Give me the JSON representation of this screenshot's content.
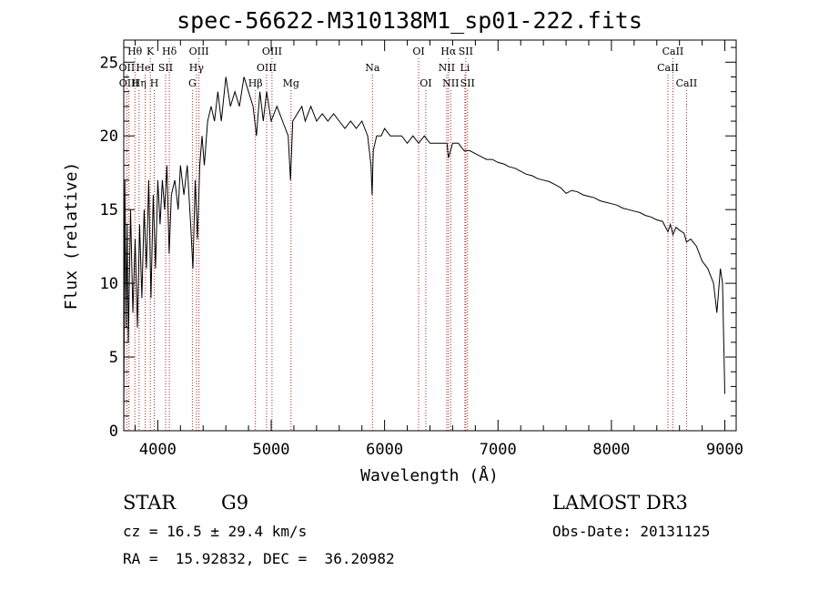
{
  "chart_data": {
    "type": "line",
    "title": "spec-56622-M310138M1_sp01-222.fits",
    "xlabel": "Wavelength (Å)",
    "ylabel": "Flux (relative)",
    "xlim": [
      3700,
      9100
    ],
    "ylim": [
      0,
      26.5
    ],
    "xticks": [
      4000,
      5000,
      6000,
      7000,
      8000,
      9000
    ],
    "yticks": [
      0,
      5,
      10,
      15,
      20,
      25
    ],
    "line_color": "#000000",
    "marker_color": "#b22222",
    "spectrum_points": [
      [
        3700,
        0.5
      ],
      [
        3710,
        17
      ],
      [
        3720,
        7
      ],
      [
        3730,
        14
      ],
      [
        3740,
        6
      ],
      [
        3760,
        15
      ],
      [
        3780,
        8
      ],
      [
        3800,
        13
      ],
      [
        3820,
        7
      ],
      [
        3840,
        14
      ],
      [
        3860,
        9
      ],
      [
        3880,
        15
      ],
      [
        3900,
        11
      ],
      [
        3920,
        17
      ],
      [
        3940,
        9
      ],
      [
        3960,
        16
      ],
      [
        3980,
        11
      ],
      [
        4000,
        17
      ],
      [
        4020,
        14
      ],
      [
        4040,
        17
      ],
      [
        4060,
        15
      ],
      [
        4080,
        18
      ],
      [
        4100,
        12
      ],
      [
        4120,
        16
      ],
      [
        4150,
        17
      ],
      [
        4180,
        15
      ],
      [
        4200,
        18
      ],
      [
        4230,
        16
      ],
      [
        4260,
        18
      ],
      [
        4290,
        14
      ],
      [
        4310,
        11
      ],
      [
        4330,
        17
      ],
      [
        4350,
        13
      ],
      [
        4370,
        18
      ],
      [
        4390,
        20
      ],
      [
        4410,
        18
      ],
      [
        4440,
        21
      ],
      [
        4470,
        22
      ],
      [
        4500,
        21
      ],
      [
        4530,
        23
      ],
      [
        4560,
        21
      ],
      [
        4600,
        24
      ],
      [
        4640,
        22
      ],
      [
        4680,
        23
      ],
      [
        4720,
        22
      ],
      [
        4760,
        24
      ],
      [
        4800,
        23
      ],
      [
        4840,
        22
      ],
      [
        4870,
        20
      ],
      [
        4900,
        23
      ],
      [
        4930,
        21
      ],
      [
        4960,
        23
      ],
      [
        5000,
        21
      ],
      [
        5050,
        22
      ],
      [
        5100,
        21
      ],
      [
        5150,
        20
      ],
      [
        5170,
        17
      ],
      [
        5190,
        21
      ],
      [
        5230,
        21.5
      ],
      [
        5270,
        22
      ],
      [
        5300,
        21
      ],
      [
        5350,
        22
      ],
      [
        5400,
        21
      ],
      [
        5450,
        21.5
      ],
      [
        5500,
        21
      ],
      [
        5550,
        21.5
      ],
      [
        5600,
        21
      ],
      [
        5650,
        20.5
      ],
      [
        5700,
        21
      ],
      [
        5750,
        20.5
      ],
      [
        5800,
        21
      ],
      [
        5850,
        20
      ],
      [
        5880,
        18
      ],
      [
        5890,
        16
      ],
      [
        5900,
        19
      ],
      [
        5930,
        20
      ],
      [
        5970,
        20
      ],
      [
        6000,
        20.5
      ],
      [
        6050,
        20
      ],
      [
        6100,
        20
      ],
      [
        6150,
        20
      ],
      [
        6200,
        19.5
      ],
      [
        6250,
        20
      ],
      [
        6300,
        19.5
      ],
      [
        6350,
        20
      ],
      [
        6400,
        19.5
      ],
      [
        6450,
        19.5
      ],
      [
        6500,
        19.5
      ],
      [
        6550,
        19.5
      ],
      [
        6563,
        18.5
      ],
      [
        6600,
        19.5
      ],
      [
        6650,
        19.5
      ],
      [
        6700,
        19
      ],
      [
        6750,
        19
      ],
      [
        6800,
        18.8
      ],
      [
        6850,
        18.6
      ],
      [
        6900,
        18.4
      ],
      [
        6950,
        18.4
      ],
      [
        7000,
        18.2
      ],
      [
        7050,
        18.1
      ],
      [
        7100,
        17.9
      ],
      [
        7150,
        17.8
      ],
      [
        7200,
        17.6
      ],
      [
        7250,
        17.4
      ],
      [
        7300,
        17.3
      ],
      [
        7350,
        17.1
      ],
      [
        7400,
        17
      ],
      [
        7450,
        16.9
      ],
      [
        7500,
        16.7
      ],
      [
        7550,
        16.5
      ],
      [
        7600,
        16.1
      ],
      [
        7650,
        16.3
      ],
      [
        7700,
        16.2
      ],
      [
        7750,
        16
      ],
      [
        7800,
        15.9
      ],
      [
        7850,
        15.8
      ],
      [
        7900,
        15.6
      ],
      [
        7950,
        15.5
      ],
      [
        8000,
        15.4
      ],
      [
        8050,
        15.3
      ],
      [
        8100,
        15.1
      ],
      [
        8150,
        15
      ],
      [
        8200,
        14.9
      ],
      [
        8250,
        14.8
      ],
      [
        8300,
        14.6
      ],
      [
        8350,
        14.5
      ],
      [
        8400,
        14.3
      ],
      [
        8450,
        14.2
      ],
      [
        8498,
        13.5
      ],
      [
        8520,
        14
      ],
      [
        8542,
        13.3
      ],
      [
        8570,
        13.8
      ],
      [
        8600,
        13.6
      ],
      [
        8640,
        13.4
      ],
      [
        8662,
        12.8
      ],
      [
        8700,
        13
      ],
      [
        8750,
        12.5
      ],
      [
        8800,
        11.5
      ],
      [
        8850,
        11
      ],
      [
        8900,
        10
      ],
      [
        8930,
        8
      ],
      [
        8960,
        11
      ],
      [
        8980,
        10
      ],
      [
        9000,
        2.5
      ]
    ],
    "line_markers": [
      {
        "name": "Hθ",
        "wavelength": 3798,
        "row": 1
      },
      {
        "name": "OII",
        "wavelength": 3727,
        "row": 2
      },
      {
        "name": "OIII",
        "wavelength": 3746,
        "row": 3
      },
      {
        "name": "K",
        "wavelength": 3934,
        "row": 1
      },
      {
        "name": "HeI",
        "wavelength": 3889,
        "row": 2
      },
      {
        "name": "Hη",
        "wavelength": 3835,
        "row": 3
      },
      {
        "name": "Hδ",
        "wavelength": 4102,
        "row": 1
      },
      {
        "name": "SII",
        "wavelength": 4069,
        "row": 2
      },
      {
        "name": "H",
        "wavelength": 3969,
        "row": 3
      },
      {
        "name": "OIII",
        "wavelength": 4363,
        "row": 1
      },
      {
        "name": "Hγ",
        "wavelength": 4341,
        "row": 2
      },
      {
        "name": "G",
        "wavelength": 4305,
        "row": 3
      },
      {
        "name": "OIII",
        "wavelength": 5007,
        "row": 1
      },
      {
        "name": "OIII",
        "wavelength": 4959,
        "row": 2
      },
      {
        "name": "Hβ",
        "wavelength": 4861,
        "row": 3
      },
      {
        "name": "Mg",
        "wavelength": 5175,
        "row": 3
      },
      {
        "name": "Na",
        "wavelength": 5893,
        "row": 2
      },
      {
        "name": "OI",
        "wavelength": 6300,
        "row": 1
      },
      {
        "name": "OI",
        "wavelength": 6363,
        "row": 3
      },
      {
        "name": "Hα",
        "wavelength": 6563,
        "row": 1
      },
      {
        "name": "NII",
        "wavelength": 6548,
        "row": 2
      },
      {
        "name": "NII",
        "wavelength": 6583,
        "row": 3
      },
      {
        "name": "SII",
        "wavelength": 6716,
        "row": 1
      },
      {
        "name": "Li",
        "wavelength": 6708,
        "row": 2
      },
      {
        "name": "SII",
        "wavelength": 6731,
        "row": 3
      },
      {
        "name": "CaII",
        "wavelength": 8542,
        "row": 1
      },
      {
        "name": "CaII",
        "wavelength": 8498,
        "row": 2
      },
      {
        "name": "CaII",
        "wavelength": 8662,
        "row": 3
      }
    ]
  },
  "info": {
    "class_label": "STAR",
    "subclass": "G9",
    "survey": "LAMOST DR3",
    "cz_line": "cz = 16.5 ± 29.4 km/s",
    "obs_date_line": "Obs-Date: 20131125",
    "coords_line": "RA =  15.92832, DEC =  36.20982"
  }
}
